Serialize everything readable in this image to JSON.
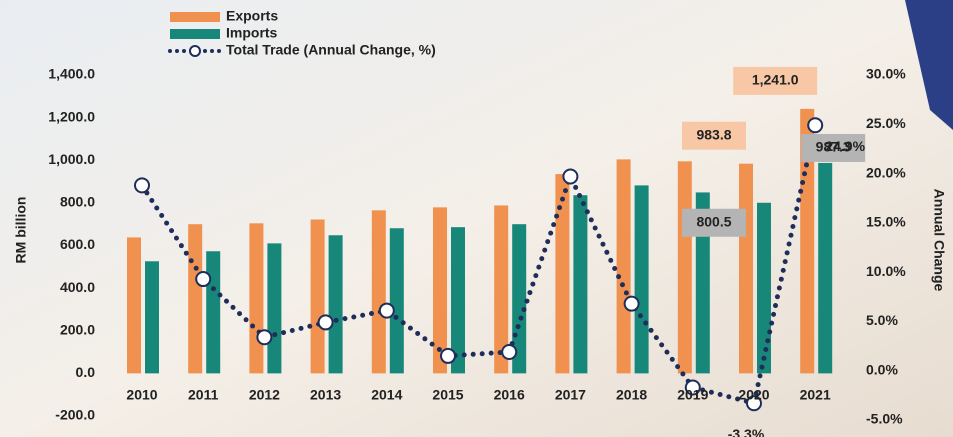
{
  "chart_data": {
    "type": "bar-line",
    "legend": "top",
    "y_label": "RM billion",
    "y2_label": "Annual Change",
    "categories": [
      "2010",
      "2011",
      "2012",
      "2013",
      "2014",
      "2015",
      "2016",
      "2017",
      "2018",
      "2019",
      "2020",
      "2021"
    ],
    "series": [
      {
        "name": "Exports",
        "type": "bar",
        "color": "#f0914f",
        "values": [
          638,
          700,
          704,
          722,
          765,
          779,
          788,
          935,
          1004,
          995,
          983.8,
          1241.0
        ],
        "value_labels": [
          null,
          null,
          null,
          null,
          null,
          null,
          null,
          null,
          null,
          null,
          "983.8",
          "1,241.0"
        ]
      },
      {
        "name": "Imports",
        "type": "bar",
        "color": "#17877a",
        "values": [
          526,
          573,
          610,
          648,
          681,
          686,
          700,
          836,
          882,
          849,
          800.5,
          987.3
        ],
        "value_labels": [
          null,
          null,
          null,
          null,
          null,
          null,
          null,
          null,
          null,
          null,
          "800.5",
          "987.3"
        ]
      },
      {
        "name": "Total Trade (Annual Change, %)",
        "type": "line",
        "axis": "y2",
        "color": "#1f2d5a",
        "values": [
          18.8,
          9.3,
          3.4,
          4.9,
          6.1,
          1.5,
          1.9,
          19.7,
          6.8,
          -1.7,
          -3.3,
          24.9
        ],
        "value_labels": [
          null,
          null,
          null,
          null,
          null,
          null,
          null,
          null,
          null,
          null,
          "-3.3%",
          "24.9%"
        ]
      }
    ],
    "ylim": [
      -200,
      1400
    ],
    "yticks": [
      {
        "value": -200,
        "label": "-200.0"
      },
      {
        "value": 0,
        "label": "0.0"
      },
      {
        "value": 200,
        "label": "200.0"
      },
      {
        "value": 400,
        "label": "400.0"
      },
      {
        "value": 600,
        "label": "600.0"
      },
      {
        "value": 800,
        "label": "800.0"
      },
      {
        "value": 1000,
        "label": "1,000.0"
      },
      {
        "value": 1200,
        "label": "1,200.0"
      },
      {
        "value": 1400,
        "label": "1,400.0"
      }
    ],
    "y2lim": [
      -5,
      30
    ],
    "y2ticks": [
      {
        "value": -5,
        "label": "-5.0%"
      },
      {
        "value": 0,
        "label": "0.0%"
      },
      {
        "value": 5,
        "label": "5.0%"
      },
      {
        "value": 10,
        "label": "10.0%"
      },
      {
        "value": 15,
        "label": "15.0%"
      },
      {
        "value": 20,
        "label": "20.0%"
      },
      {
        "value": 25,
        "label": "25.0%"
      },
      {
        "value": 30,
        "label": "30.0%"
      }
    ],
    "grid": false
  }
}
